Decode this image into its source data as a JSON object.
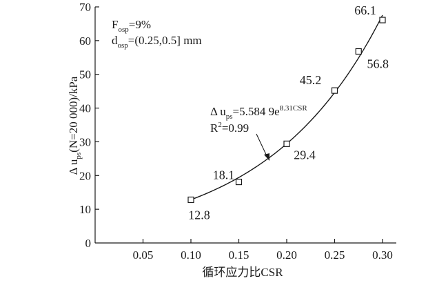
{
  "chart_data": {
    "type": "scatter",
    "xlabel": "循环应力比CSR",
    "ylabel": {
      "prefix": "Δ u",
      "sub": "ps",
      "suffix": "(N=20 000)/kPa"
    },
    "xlim": [
      0,
      0.3
    ],
    "ylim": [
      0,
      70
    ],
    "x_ticks": [
      "0.05",
      "0.10",
      "0.15",
      "0.20",
      "0.25",
      "0.30"
    ],
    "x_tick_values": [
      0.05,
      0.1,
      0.15,
      0.2,
      0.25,
      0.3
    ],
    "y_ticks": [
      "0",
      "10",
      "20",
      "30",
      "40",
      "50",
      "60",
      "70"
    ],
    "y_tick_values": [
      0,
      10,
      20,
      30,
      40,
      50,
      60,
      70
    ],
    "grid": false,
    "series": [
      {
        "marker": "open-square",
        "points": [
          {
            "x": 0.1,
            "y": 12.8,
            "label": "12.8"
          },
          {
            "x": 0.15,
            "y": 18.1,
            "label": "18.1"
          },
          {
            "x": 0.2,
            "y": 29.4,
            "label": "29.4"
          },
          {
            "x": 0.25,
            "y": 45.2,
            "label": "45.2"
          },
          {
            "x": 0.275,
            "y": 56.8,
            "label": "56.8"
          },
          {
            "x": 0.3,
            "y": 66.1,
            "label": "66.1"
          }
        ]
      }
    ],
    "fit": {
      "a": 5.5849,
      "b": 8.31,
      "x_range": [
        0.1,
        0.3
      ]
    },
    "annotations": {
      "params_line1": {
        "main": "F",
        "sub": "osp",
        "tail": "=9%"
      },
      "params_line2": {
        "main": "d",
        "sub": "osp",
        "tail": "=(0.25,0.5] mm"
      },
      "equation": {
        "prefix": "Δ u",
        "sub": "ps",
        "mid": "=5.584 9e",
        "sup": "8.31CSR"
      },
      "r2": {
        "main": "R",
        "sup": "2",
        "tail": "=0.99"
      }
    }
  }
}
